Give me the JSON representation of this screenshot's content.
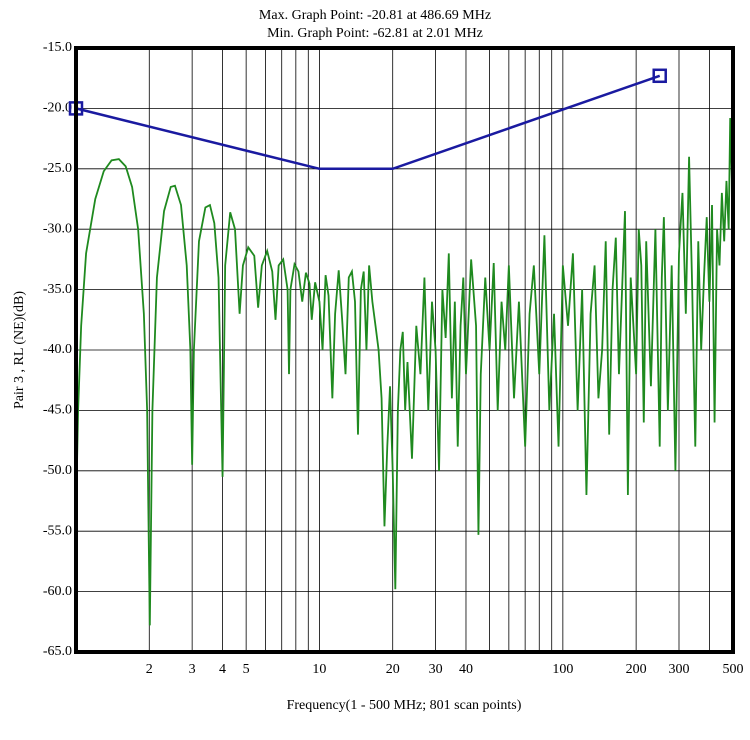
{
  "chart_data": {
    "type": "line",
    "title_lines": [
      "Max. Graph Point: -20.81 at 486.69 MHz",
      "Min. Graph Point: -62.81 at 2.01 MHz"
    ],
    "x_label": "Frequency(1 - 500 MHz; 801 scan points)",
    "y_label": "Pair 3 , RL (NE)(dB)",
    "x_log": true,
    "grid": true,
    "xlim": [
      1,
      500
    ],
    "ylim": [
      -65,
      -15
    ],
    "xticks": [
      2,
      3,
      4,
      5,
      10,
      20,
      30,
      40,
      100,
      200,
      300,
      500
    ],
    "x_minor_grid": [
      6,
      7,
      8,
      9,
      50,
      60,
      70,
      80,
      90,
      400
    ],
    "yticks": [
      {
        "value": -15,
        "label": "-15.0"
      },
      {
        "value": -20,
        "label": "-20.0"
      },
      {
        "value": -25,
        "label": "-25.0"
      },
      {
        "value": -30,
        "label": "-30.0"
      },
      {
        "value": -35,
        "label": "-35.0"
      },
      {
        "value": -40,
        "label": "-40.0"
      },
      {
        "value": -45,
        "label": "-45.0"
      },
      {
        "value": -50,
        "label": "-50.0"
      },
      {
        "value": -55,
        "label": "-55.0"
      },
      {
        "value": -60,
        "label": "-60.0"
      },
      {
        "value": -65,
        "label": "-65.0"
      }
    ],
    "series": [
      {
        "color": "#1a1aa0",
        "markers": "square",
        "x": [
          1,
          10,
          20,
          250
        ],
        "values": [
          -20,
          -25,
          -25,
          -17.3
        ]
      },
      {
        "color": "#1f8a1f",
        "x": [
          1.0,
          1.02,
          1.05,
          1.1,
          1.2,
          1.3,
          1.4,
          1.5,
          1.6,
          1.7,
          1.8,
          1.9,
          1.96,
          2.01,
          2.06,
          2.15,
          2.3,
          2.45,
          2.55,
          2.7,
          2.85,
          2.95,
          3.0,
          3.05,
          3.2,
          3.4,
          3.55,
          3.7,
          3.85,
          4.0,
          4.1,
          4.3,
          4.5,
          4.7,
          4.85,
          5.1,
          5.4,
          5.6,
          5.8,
          6.1,
          6.4,
          6.6,
          6.8,
          7.1,
          7.4,
          7.5,
          7.6,
          7.9,
          8.2,
          8.5,
          8.8,
          9.1,
          9.3,
          9.6,
          10,
          10.3,
          10.6,
          10.9,
          11.3,
          11.6,
          12,
          12.4,
          12.8,
          13.2,
          13.6,
          14,
          14.4,
          14.8,
          15.2,
          15.6,
          16,
          16.5,
          17,
          17.5,
          18,
          18.5,
          19,
          19.5,
          20,
          20.5,
          21,
          21.5,
          22,
          22.5,
          23,
          24,
          25,
          26,
          27,
          28,
          29,
          30,
          31,
          32,
          33,
          34,
          35,
          36,
          37,
          38,
          39,
          40,
          42,
          44,
          45,
          46,
          48,
          50,
          52,
          54,
          56,
          58,
          60,
          63,
          66,
          70,
          73,
          76,
          80,
          84,
          88,
          92,
          96,
          100,
          105,
          110,
          115,
          120,
          125,
          130,
          135,
          140,
          145,
          150,
          155,
          160,
          165,
          170,
          180,
          185,
          190,
          200,
          205,
          210,
          215,
          220,
          230,
          240,
          250,
          255,
          260,
          270,
          280,
          290,
          300,
          310,
          320,
          330,
          340,
          350,
          360,
          370,
          380,
          390,
          400,
          410,
          420,
          430,
          440,
          450,
          460,
          470,
          480,
          487,
          495,
          500
        ],
        "values": [
          -53.6,
          -45,
          -38,
          -32,
          -27.5,
          -25.2,
          -24.3,
          -24.2,
          -24.8,
          -26.5,
          -30,
          -37,
          -45,
          -62.8,
          -45,
          -34,
          -28.5,
          -26.5,
          -26.4,
          -28,
          -33,
          -40,
          -49.5,
          -40,
          -31,
          -28.2,
          -28.0,
          -29.5,
          -34,
          -50.5,
          -33,
          -28.6,
          -30,
          -37,
          -33,
          -31.5,
          -32.2,
          -36.5,
          -33,
          -31.8,
          -33.5,
          -37.5,
          -33,
          -32.5,
          -35,
          -42,
          -35,
          -32.9,
          -33.5,
          -36,
          -33.6,
          -34.5,
          -37.5,
          -34.4,
          -36,
          -40,
          -33.8,
          -35.5,
          -44,
          -37,
          -33.4,
          -37.5,
          -42,
          -34,
          -33.5,
          -36,
          -47,
          -35,
          -33.5,
          -40,
          -33,
          -36,
          -38,
          -40,
          -44,
          -54.6,
          -48,
          -43,
          -50,
          -59.8,
          -45,
          -40,
          -38.5,
          -45,
          -41,
          -49,
          -38,
          -42,
          -34,
          -45,
          -36,
          -40,
          -50,
          -35,
          -39,
          -32,
          -44,
          -36,
          -48,
          -38,
          -34,
          -42,
          -32.5,
          -38,
          -55.3,
          -42,
          -34,
          -40,
          -32.8,
          -45,
          -36,
          -40,
          -33,
          -44,
          -36,
          -48,
          -37,
          -33,
          -42,
          -30.5,
          -45,
          -37,
          -48,
          -33,
          -38,
          -32,
          -45,
          -35,
          -52,
          -37,
          -33,
          -44,
          -40,
          -31,
          -47,
          -35,
          -30.7,
          -42,
          -28.5,
          -52,
          -34,
          -42,
          -30,
          -33,
          -46,
          -31,
          -43,
          -30,
          -48,
          -34,
          -29,
          -45,
          -33,
          -50,
          -32,
          -27,
          -37,
          -24,
          -35,
          -48,
          -31,
          -40,
          -34,
          -29,
          -36,
          -28,
          -46,
          -30,
          -33,
          -27,
          -31,
          -26,
          -30,
          -20.8,
          -26,
          -24.5
        ]
      }
    ]
  }
}
